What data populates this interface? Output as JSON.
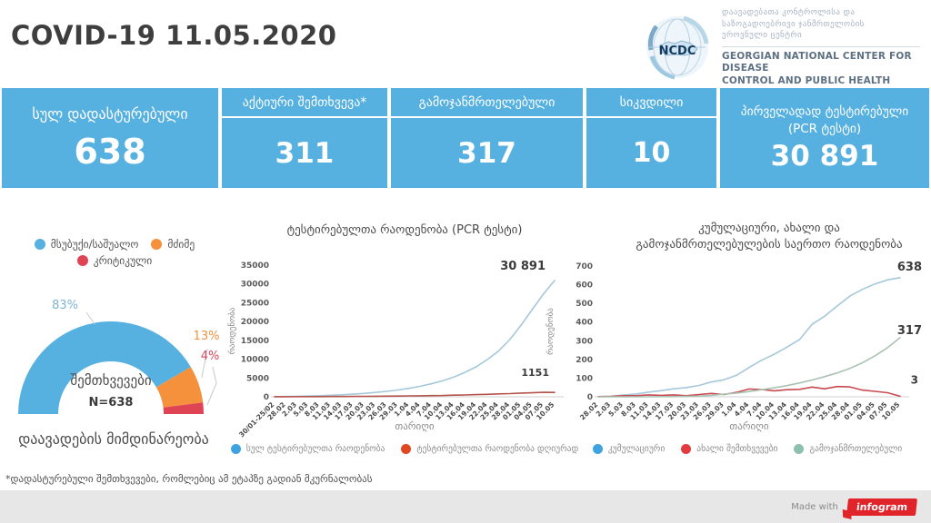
{
  "header": {
    "title": "COVID-19 11.05.2020",
    "logo": {
      "acronym": "NCDC",
      "org_ka_line1": "დაავადებათა კონტროლისა და",
      "org_ka_line2": "საზოგადოებრივი ჯანმრთელობის",
      "org_ka_line3": "ეროვნული ცენტრი",
      "org_en_line1": "GEORGIAN NATIONAL CENTER FOR DISEASE",
      "org_en_line2": "CONTROL AND PUBLIC HEALTH"
    }
  },
  "stats": {
    "cards": [
      {
        "label": "სულ დადასტურებული",
        "value": "638"
      },
      {
        "label": "აქტიური შემთხვევა*",
        "value": "311"
      },
      {
        "label": "გამოჯანმრთელებული",
        "value": "317"
      },
      {
        "label": "სიკვდილი",
        "value": "10"
      },
      {
        "label_line1": "პირველადად ტესტირებული",
        "label_line2": "(PCR ტესტი)",
        "value": "30 891"
      }
    ]
  },
  "footnote": "*დადასტურებული შემთხვევები, რომლებიც ამ ეტაპზე გადიან მკურნალობას",
  "footer": {
    "made_with": "Made with",
    "brand": "infogram"
  },
  "colors": {
    "card_blue": "#56b1e1",
    "gauge_orange": "#f5913c",
    "gauge_red": "#df4455",
    "line_blue": "#a5c8da",
    "line_red": "#b5534b",
    "line_teal": "#a9c3b4",
    "infogram_red": "#e1242a"
  },
  "chart_data": [
    {
      "type": "pie",
      "variant": "half-donut",
      "name": "disease-course",
      "title": "დაავადების მიმდინარეობა",
      "center_label": "შემთხვევები",
      "center_sublabel": "N=638",
      "slices": [
        {
          "label": "მსუბუქი/საშუალო",
          "pct": 83,
          "pct_label": "83%",
          "color": "#56b1e1",
          "label_color": "#7fb3d8"
        },
        {
          "label": "მძიმე",
          "pct": 13,
          "pct_label": "13%",
          "color": "#f5913c",
          "label_color": "#ef9340"
        },
        {
          "label": "კრიტიკული",
          "pct": 4,
          "pct_label": "4%",
          "color": "#df4455",
          "label_color": "#d9485e"
        }
      ]
    },
    {
      "type": "line",
      "name": "pcr-tests",
      "title": [
        "ტესტირებულთა რაოდენობა (PCR ტესტი)"
      ],
      "xlabel": "თარიღი",
      "ylabel": "რაოდენობა",
      "ylim": [
        0,
        35000
      ],
      "yticks": [
        0,
        5000,
        10000,
        15000,
        20000,
        25000,
        30000,
        35000
      ],
      "legend_position": "bottom",
      "grid": false,
      "categories": [
        "30/01-25/02",
        "28.02",
        "2.03",
        "5.03",
        "8.03",
        "11.03",
        "14.03",
        "17.03",
        "20.03",
        "23.03",
        "26.03",
        "29.03",
        "1.04",
        "4.04",
        "7.04",
        "10.04",
        "13.04",
        "16.04",
        "19.04",
        "22.04",
        "25.04",
        "28.04",
        "01.05",
        "04.05",
        "07.05",
        "10.05"
      ],
      "series": [
        {
          "name": "სულ ტესტირებულთა რაოდენობა",
          "color": "#a5c8da",
          "legend_color": "#3fa3e0",
          "end_label": "30 891",
          "values": [
            40,
            80,
            130,
            200,
            290,
            400,
            540,
            700,
            900,
            1150,
            1450,
            1800,
            2250,
            2800,
            3450,
            4250,
            5250,
            6500,
            8000,
            9900,
            12200,
            15200,
            19000,
            23200,
            27300,
            30891
          ]
        },
        {
          "name": "ტესტირებულთა რაოდენობა დღიურად",
          "color": "#b5534b",
          "legend_color": "#e0491f",
          "end_label": "1151",
          "values": [
            15,
            30,
            45,
            40,
            60,
            80,
            75,
            105,
            125,
            140,
            170,
            190,
            240,
            260,
            320,
            350,
            430,
            480,
            580,
            640,
            780,
            850,
            1000,
            1060,
            1190,
            1151
          ]
        }
      ]
    },
    {
      "type": "line",
      "name": "cumulative-new-recovered",
      "title": [
        "კუმულაციური, ახალი და",
        "გამოჯანმრთელებულების საერთო რაოდენობა"
      ],
      "xlabel": "თარიღი",
      "ylabel": "რაოდენობა",
      "ylim": [
        0,
        700
      ],
      "yticks": [
        0,
        100,
        200,
        300,
        400,
        500,
        600,
        700
      ],
      "legend_position": "bottom",
      "grid": false,
      "categories": [
        "28.02",
        "2.03",
        "5.03",
        "8.03",
        "11.03",
        "14.03",
        "17.03",
        "20.03",
        "23.03",
        "26.03",
        "29.03",
        "1.04",
        "4.04",
        "7.04",
        "10.04",
        "13.04",
        "16.04",
        "19.04",
        "22.04",
        "25.04",
        "28.04",
        "01.05",
        "04.05",
        "07.05",
        "10.05"
      ],
      "series": [
        {
          "name": "კუმულაციური",
          "color": "#a5c8da",
          "legend_color": "#3fa3e0",
          "end_label": "638",
          "values": [
            1,
            3,
            9,
            15,
            25,
            33,
            43,
            49,
            61,
            79,
            91,
            115,
            157,
            196,
            228,
            266,
            306,
            388,
            431,
            486,
            539,
            575,
            604,
            626,
            638
          ]
        },
        {
          "name": "ახალი შემთხვევები",
          "color": "#c84a50",
          "legend_color": "#e23b40",
          "end_label": "3",
          "values": [
            1,
            2,
            6,
            6,
            10,
            8,
            10,
            6,
            12,
            18,
            12,
            24,
            42,
            39,
            32,
            38,
            40,
            52,
            43,
            55,
            53,
            36,
            29,
            22,
            3
          ]
        },
        {
          "name": "გამოჯანმრთელებული",
          "color": "#a9c3b4",
          "legend_color": "#8fc0ae",
          "end_label": "317",
          "values": [
            0,
            0,
            0,
            0,
            0,
            1,
            1,
            2,
            4,
            8,
            14,
            20,
            28,
            38,
            48,
            60,
            74,
            90,
            108,
            128,
            152,
            182,
            219,
            263,
            317
          ]
        }
      ]
    }
  ]
}
